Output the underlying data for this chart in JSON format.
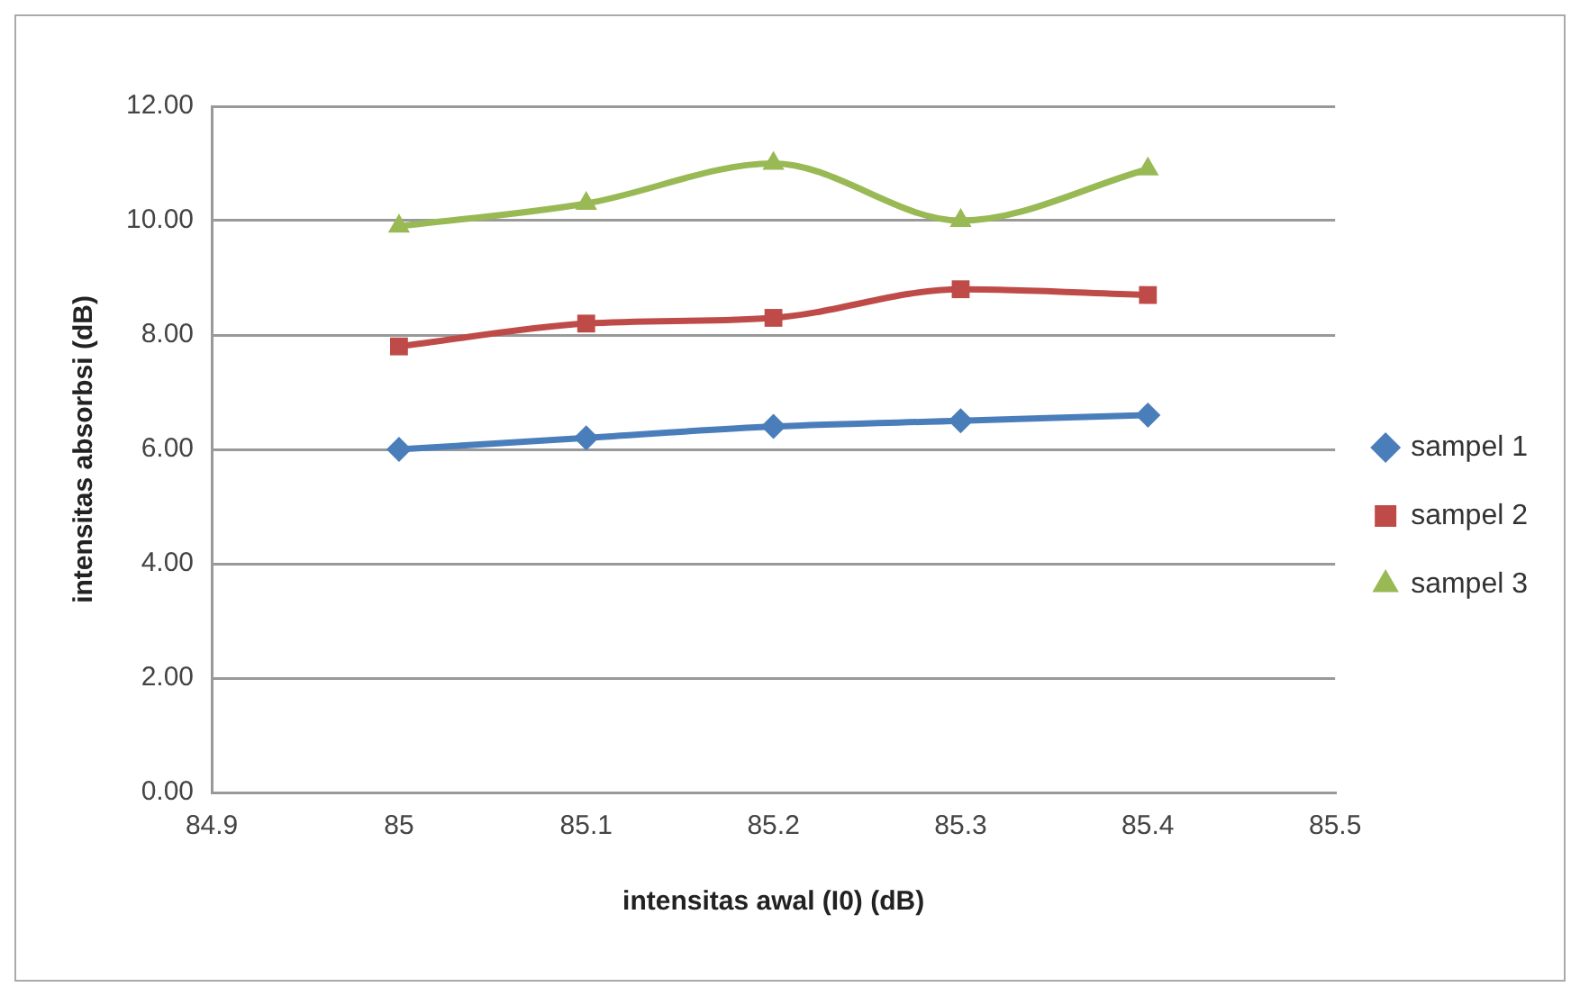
{
  "chart_data": {
    "type": "line",
    "xlabel": "intensitas awal (I0) (dB)",
    "ylabel": "intensitas absorbsi (dB)",
    "x": [
      85,
      85.1,
      85.2,
      85.3,
      85.4
    ],
    "series": [
      {
        "name": "sampel 1",
        "color": "#4a7ebb",
        "marker": "diamond",
        "values": [
          6.0,
          6.2,
          6.4,
          6.5,
          6.6
        ]
      },
      {
        "name": "sampel 2",
        "color": "#be4b48",
        "marker": "square",
        "values": [
          7.8,
          8.2,
          8.3,
          8.8,
          8.7
        ]
      },
      {
        "name": "sampel 3",
        "color": "#98b954",
        "marker": "triangle",
        "values": [
          9.9,
          10.3,
          11.0,
          10.0,
          10.9
        ]
      }
    ],
    "xlim": [
      84.9,
      85.5
    ],
    "xticks": [
      84.9,
      85,
      85.1,
      85.2,
      85.3,
      85.4,
      85.5
    ],
    "ylim": [
      0,
      12
    ],
    "yticks": [
      {
        "value": 0,
        "label": "0.00"
      },
      {
        "value": 2,
        "label": "2.00"
      },
      {
        "value": 4,
        "label": "4.00"
      },
      {
        "value": 6,
        "label": "6.00"
      },
      {
        "value": 8,
        "label": "8.00"
      },
      {
        "value": 10,
        "label": "10.00"
      },
      {
        "value": 12,
        "label": "12.00"
      }
    ],
    "grid": "y",
    "legend": "right"
  }
}
